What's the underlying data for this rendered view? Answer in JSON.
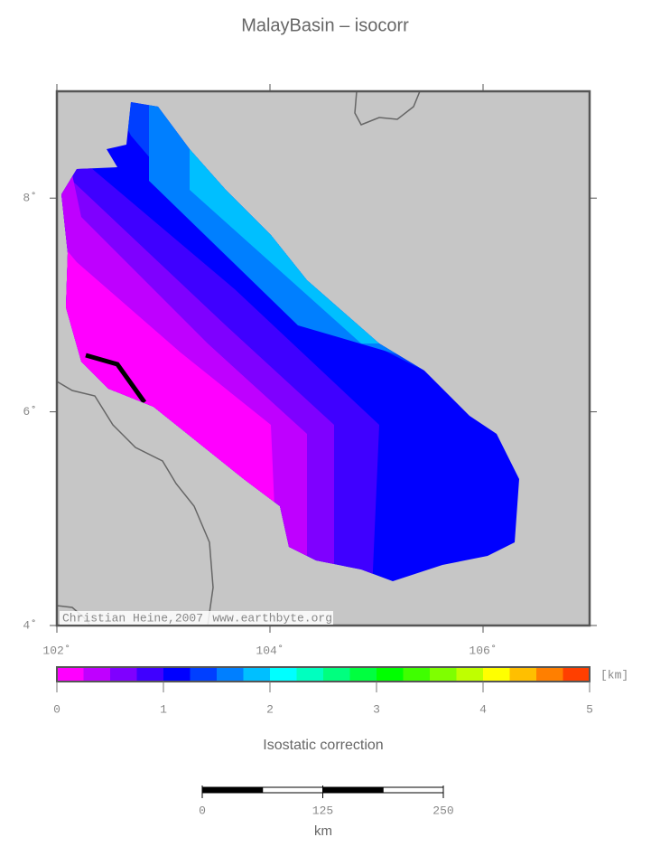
{
  "title": "MalayBasin – isocorr",
  "map": {
    "xlim": [
      102,
      107
    ],
    "ylim": [
      4,
      9
    ],
    "xticks": [
      {
        "value": 102,
        "label": "102˚"
      },
      {
        "value": 104,
        "label": "104˚"
      },
      {
        "value": 106,
        "label": "106˚"
      }
    ],
    "yticks": [
      {
        "value": 4,
        "label": "4˚"
      },
      {
        "value": 6,
        "label": "6˚"
      },
      {
        "value": 8,
        "label": "8˚"
      }
    ],
    "credit_author": "Christian Heine,2007",
    "credit_url": "www.earthbyte.org"
  },
  "colorbar": {
    "label": "Isostatic correction",
    "unit": "[km]",
    "lim": [
      0,
      5
    ],
    "ticks": [
      0,
      1,
      2,
      3,
      4,
      5
    ],
    "colors": [
      "#ff00ff",
      "#bf00ff",
      "#7f00ff",
      "#3f00ff",
      "#0000ff",
      "#003fff",
      "#007fff",
      "#00bfff",
      "#00ffff",
      "#00ffbf",
      "#00ff7f",
      "#00ff3f",
      "#00ff00",
      "#3fff00",
      "#7fff00",
      "#bfff00",
      "#ffff00",
      "#ffbf00",
      "#ff7f00",
      "#ff3f00"
    ]
  },
  "scalebar": {
    "lim": [
      0,
      250
    ],
    "ticks": [
      0,
      125,
      250
    ],
    "unit": "km"
  }
}
